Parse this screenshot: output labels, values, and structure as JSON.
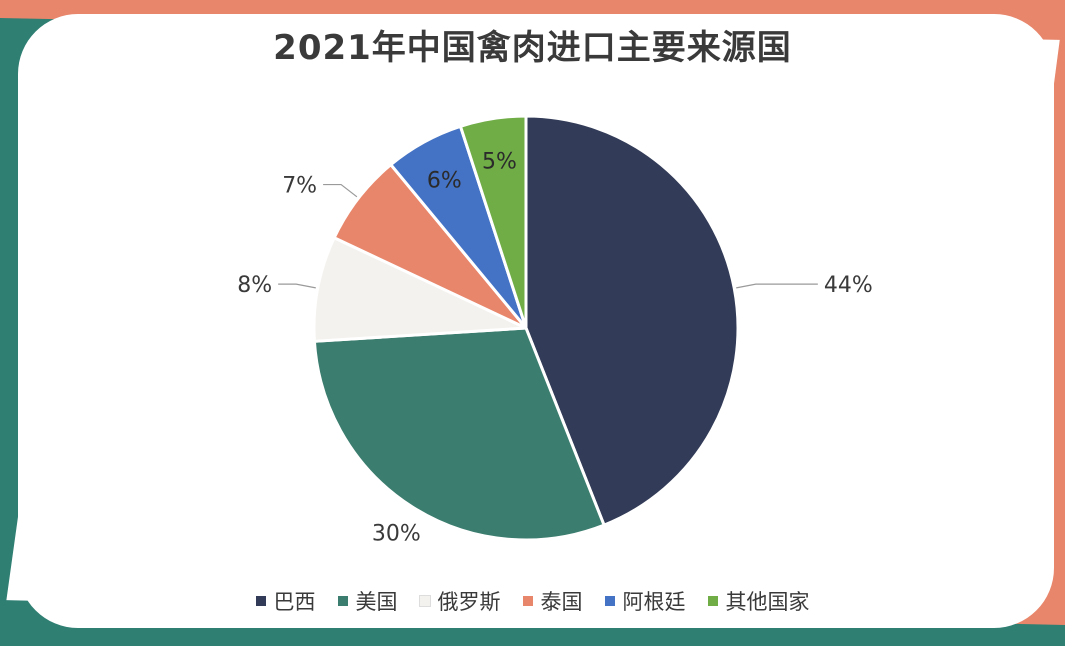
{
  "chart_data": {
    "type": "pie",
    "title": "2021年中国禽肉进口主要来源国",
    "categories": [
      "巴西",
      "美国",
      "俄罗斯",
      "泰国",
      "阿根廷",
      "其他国家"
    ],
    "values": [
      44,
      30,
      8,
      7,
      6,
      5
    ],
    "labels": [
      "44%",
      "30%",
      "8%",
      "7%",
      "6%",
      "5%"
    ],
    "colors": [
      "#323B57",
      "#3B7D6E",
      "#F4F2EE",
      "#E8866B",
      "#4472C4",
      "#70AD47"
    ],
    "legend": "bottom"
  },
  "theme": {
    "frame_teal": "#2F7F73",
    "frame_salmon": "#E8866B",
    "title_color": "#3A3A3A"
  }
}
